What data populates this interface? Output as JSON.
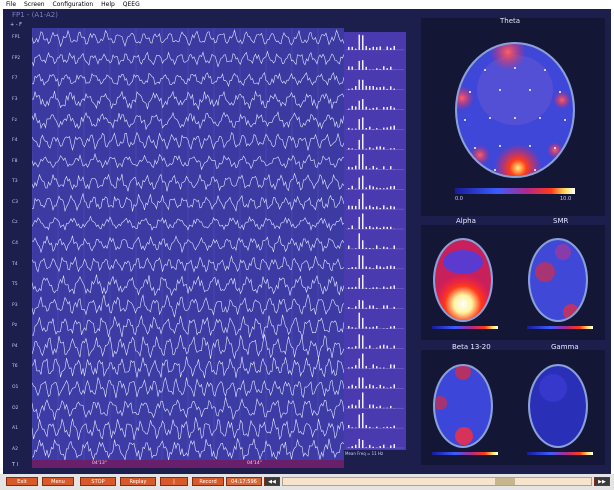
{
  "menu": [
    "File",
    "Screen",
    "Configuration",
    "Help",
    "QEEG"
  ],
  "eeg": {
    "title": "FP1 - (A1-A2)",
    "controls": "+ -  F",
    "channels": [
      "FP1",
      "FP2",
      "F7",
      "F3",
      "Fz",
      "F4",
      "F8",
      "T3",
      "C3",
      "Cz",
      "C4",
      "T4",
      "T5",
      "P3",
      "Pz",
      "P4",
      "T6",
      "O1",
      "O2",
      "A1",
      "A2"
    ],
    "time_left": "04'13\"",
    "time_right": "04'14\"",
    "tt_label": "T I"
  },
  "spectrum": {
    "axis_ticks": [
      "0",
      "10",
      "20",
      "30",
      "40",
      "50"
    ],
    "xlabel": "Mean Freq = 11 Hz"
  },
  "maps": {
    "theta": {
      "title": "Theta",
      "scale_min": "0.0",
      "scale_max": "10.0"
    },
    "alpha": {
      "title": "Alpha"
    },
    "smr": {
      "title": "SMR"
    },
    "beta": {
      "title": "Beta 13-20"
    },
    "gamma": {
      "title": "Gamma"
    }
  },
  "toolbar": {
    "buttons": [
      "Exit",
      "Menu",
      "STOP",
      "Replay",
      "|",
      "Record",
      "04:17:596"
    ]
  }
}
